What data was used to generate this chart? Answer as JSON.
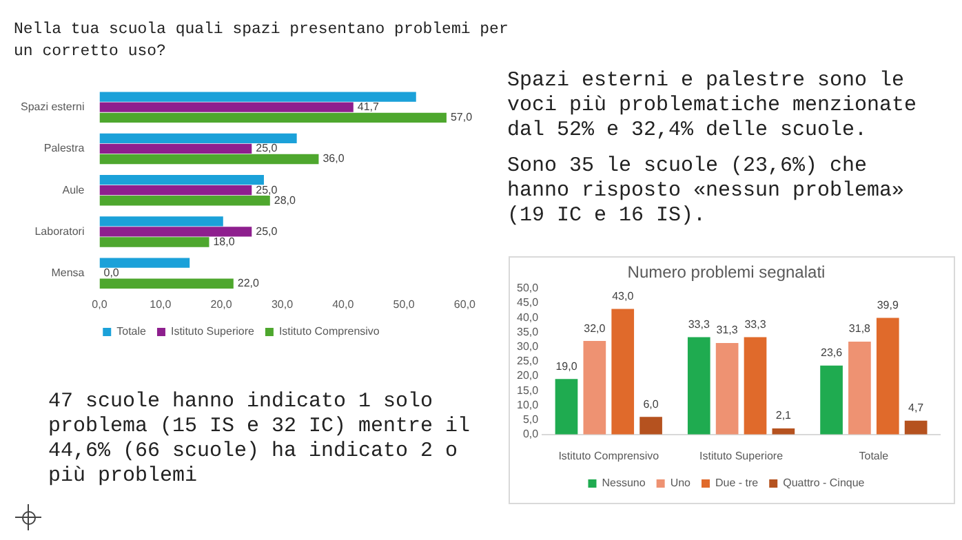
{
  "chart_data": [
    {
      "type": "bar",
      "orientation": "horizontal",
      "title": "Nella tua scuola quali spazi presentano problemi per un corretto uso?",
      "categories": [
        "Spazi esterni",
        "Palestra",
        "Aule",
        "Laboratori",
        "Mensa"
      ],
      "series": [
        {
          "name": "Totale",
          "color": "#1ba1d9",
          "values": [
            52.0,
            32.4,
            27.0,
            20.3,
            14.8
          ],
          "value_labels": [
            null,
            null,
            null,
            null,
            null
          ]
        },
        {
          "name": "Istituto Superiore",
          "color": "#8e1f8e",
          "values": [
            41.7,
            25.0,
            25.0,
            25.0,
            0.0
          ],
          "value_labels": [
            "41,7",
            "25,0",
            "25,0",
            "25,0",
            "0,0"
          ]
        },
        {
          "name": "Istituto Comprensivo",
          "color": "#4ea72e",
          "values": [
            57.0,
            36.0,
            28.0,
            18.0,
            22.0
          ],
          "value_labels": [
            "57,0",
            "36,0",
            "28,0",
            "18,0",
            "22,0"
          ]
        }
      ],
      "xlim": [
        0,
        60
      ],
      "xticks": [
        {
          "value": 0,
          "label": "0,0"
        },
        {
          "value": 10,
          "label": "10,0"
        },
        {
          "value": 20,
          "label": "20,0"
        },
        {
          "value": 30,
          "label": "30,0"
        },
        {
          "value": 40,
          "label": "40,0"
        },
        {
          "value": 50,
          "label": "50,0"
        },
        {
          "value": 60,
          "label": "60,0"
        }
      ],
      "grid": false,
      "legend": "bottom",
      "annotations": [
        "Spazi esterni e palestre sono le voci più problematiche menzionate dal 52% e 32,4% delle scuole.",
        "Sono 35 le scuole (23,6%) che hanno risposto «nessun problema» (19 IC e 16 IS).",
        "47 scuole hanno indicato 1 solo problema (15 IS e 32 IC) mentre il 44,6% (66 scuole) ha indicato 2 o più problemi"
      ]
    },
    {
      "type": "bar",
      "title": "Numero problemi segnalati",
      "categories": [
        "Istituto Comprensivo",
        "Istituto Superiore",
        "Totale"
      ],
      "series": [
        {
          "name": "Nessuno",
          "color": "#1fab50",
          "values": [
            19.0,
            33.3,
            23.6
          ],
          "value_labels": [
            "19,0",
            "33,3",
            "23,6"
          ]
        },
        {
          "name": "Uno",
          "color": "#ee9272",
          "values": [
            32.0,
            31.3,
            31.8
          ],
          "value_labels": [
            "32,0",
            "31,3",
            "31,8"
          ]
        },
        {
          "name": "Due - tre",
          "color": "#e06a2b",
          "values": [
            43.0,
            33.3,
            39.9
          ],
          "value_labels": [
            "43,0",
            "33,3",
            "39,9"
          ]
        },
        {
          "name": "Quattro - Cinque",
          "color": "#b5521f",
          "values": [
            6.0,
            2.1,
            4.7
          ],
          "value_labels": [
            "6,0",
            "2,1",
            "4,7"
          ]
        }
      ],
      "ylim": [
        0,
        50
      ],
      "yticks": [
        {
          "value": 0,
          "label": "0,0"
        },
        {
          "value": 5,
          "label": "5,0"
        },
        {
          "value": 10,
          "label": "10,0"
        },
        {
          "value": 15,
          "label": "15,0"
        },
        {
          "value": 20,
          "label": "20,0"
        },
        {
          "value": 25,
          "label": "25,0"
        },
        {
          "value": 30,
          "label": "30,0"
        },
        {
          "value": 35,
          "label": "35,0"
        },
        {
          "value": 40,
          "label": "40,0"
        },
        {
          "value": 45,
          "label": "45,0"
        },
        {
          "value": 50,
          "label": "50,0"
        }
      ],
      "grid": false,
      "legend": "bottom"
    }
  ]
}
